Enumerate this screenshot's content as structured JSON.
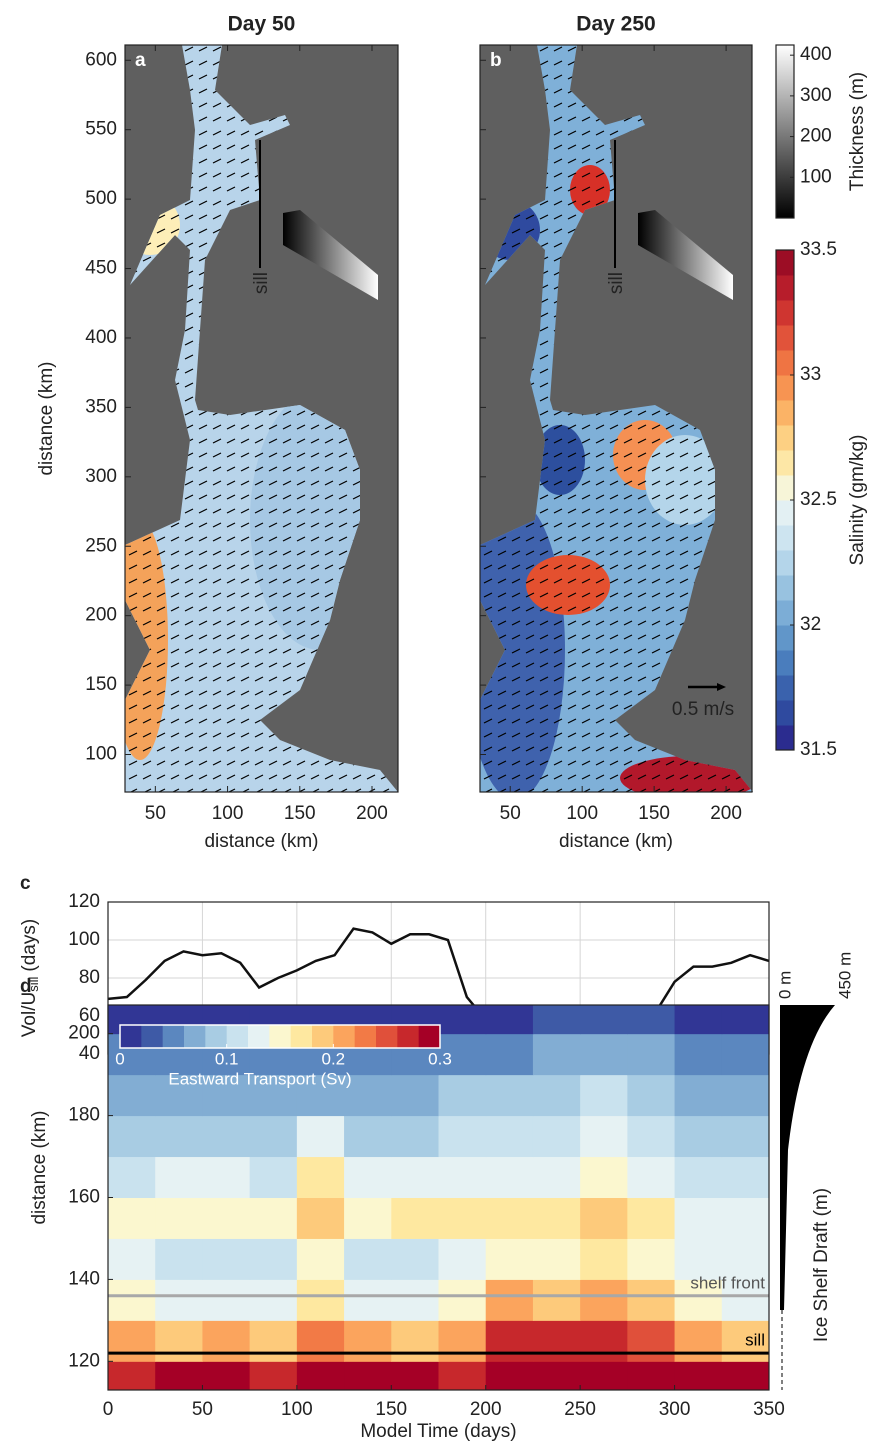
{
  "chart_data": [
    {
      "type": "map",
      "panel": "a",
      "title": "Day 50",
      "xlabel": "distance (km)",
      "ylabel": "distance (km)",
      "xlim": [
        29,
        218
      ],
      "ylim": [
        73,
        611
      ],
      "xticks": [
        50,
        100,
        150,
        200
      ],
      "yticks": [
        100,
        150,
        200,
        250,
        300,
        350,
        400,
        450,
        500,
        550,
        600
      ],
      "annotations": [
        "sill"
      ]
    },
    {
      "type": "map",
      "panel": "b",
      "title": "Day 250",
      "xlabel": "distance (km)",
      "xlim": [
        29,
        218
      ],
      "ylim": [
        73,
        611
      ],
      "xticks": [
        50,
        100,
        150,
        200
      ],
      "yticks": [
        100,
        150,
        200,
        250,
        300,
        350,
        400,
        450,
        500,
        550,
        600
      ],
      "annotations": [
        "sill",
        "0.5 m/s"
      ]
    },
    {
      "type": "colorbar",
      "label": "Thickness (m)",
      "ylim": [
        0,
        425
      ],
      "yticks": [
        100,
        200,
        300,
        400
      ],
      "colormap": [
        "#000000",
        "#ffffff"
      ]
    },
    {
      "type": "colorbar",
      "label": "Salinity (gm/kg)",
      "ylim": [
        31.5,
        33.5
      ],
      "yticks": [
        31.5,
        32,
        32.5,
        33,
        33.5
      ],
      "colormap": [
        "#2b2c8f",
        "#2f4a9f",
        "#3a62ad",
        "#4a7dbd",
        "#6196c9",
        "#7cadd6",
        "#98c2e0",
        "#b4d5ea",
        "#cde4f0",
        "#e3f0f3",
        "#f7f5d8",
        "#fde7a6",
        "#fdd083",
        "#fbb366",
        "#f79452",
        "#ef7443",
        "#e1533a",
        "#cf3530",
        "#b71d2b",
        "#9c0d25"
      ]
    },
    {
      "type": "line",
      "panel": "c",
      "ylabel": "Vol/U",
      "ylabel_sub": "sill",
      "ylabel_unit": "(days)",
      "xlim": [
        0,
        350
      ],
      "ylim": [
        40,
        120
      ],
      "xticks": [
        0,
        50,
        100,
        150,
        200,
        250,
        300,
        350
      ],
      "yticks": [
        40,
        60,
        80,
        100,
        120
      ],
      "grid": true,
      "color": "#111111",
      "x": [
        0,
        10,
        20,
        30,
        40,
        50,
        60,
        70,
        80,
        90,
        100,
        110,
        120,
        130,
        140,
        150,
        160,
        170,
        180,
        190,
        200,
        210,
        220,
        230,
        240,
        250,
        260,
        270,
        280,
        290,
        300,
        310,
        320,
        330,
        340,
        350
      ],
      "values": [
        69,
        70,
        79,
        89,
        94,
        92,
        93,
        88,
        75,
        80,
        84,
        89,
        92,
        106,
        104,
        98,
        103,
        103,
        100,
        70,
        58,
        57,
        57,
        58,
        61,
        57,
        57,
        61,
        56,
        62,
        78,
        86,
        86,
        88,
        92,
        89
      ]
    },
    {
      "type": "heatmap",
      "panel": "d",
      "xlabel": "Model Time (days)",
      "ylabel": "distance (km)",
      "xlim": [
        0,
        350
      ],
      "ylim": [
        113,
        207
      ],
      "xticks": [
        0,
        50,
        100,
        150,
        200,
        250,
        300,
        350
      ],
      "yticks": [
        120,
        140,
        160,
        180,
        200
      ],
      "xbins": [
        0,
        25,
        50,
        75,
        100,
        125,
        150,
        175,
        200,
        225,
        250,
        275,
        300,
        325,
        350
      ],
      "ybins": [
        113,
        120,
        130,
        140,
        150,
        160,
        170,
        180,
        190,
        200,
        207
      ],
      "z": [
        [
          0.27,
          0.28,
          0.28,
          0.27,
          0.29,
          0.28,
          0.28,
          0.27,
          0.3,
          0.3,
          0.3,
          0.29,
          0.28,
          0.28
        ],
        [
          0.2,
          0.19,
          0.2,
          0.19,
          0.23,
          0.2,
          0.19,
          0.2,
          0.27,
          0.26,
          0.27,
          0.25,
          0.2,
          0.19
        ],
        [
          0.14,
          0.12,
          0.13,
          0.12,
          0.17,
          0.13,
          0.12,
          0.14,
          0.2,
          0.19,
          0.21,
          0.19,
          0.14,
          0.13
        ],
        [
          0.13,
          0.11,
          0.11,
          0.11,
          0.15,
          0.11,
          0.1,
          0.13,
          0.15,
          0.14,
          0.16,
          0.15,
          0.12,
          0.12
        ],
        [
          0.15,
          0.15,
          0.14,
          0.14,
          0.18,
          0.15,
          0.16,
          0.17,
          0.17,
          0.16,
          0.18,
          0.17,
          0.13,
          0.13
        ],
        [
          0.11,
          0.12,
          0.12,
          0.11,
          0.16,
          0.12,
          0.12,
          0.13,
          0.13,
          0.13,
          0.14,
          0.13,
          0.11,
          0.11
        ],
        [
          0.08,
          0.09,
          0.09,
          0.08,
          0.12,
          0.09,
          0.09,
          0.1,
          0.1,
          0.11,
          0.12,
          0.11,
          0.09,
          0.08
        ],
        [
          0.06,
          0.07,
          0.07,
          0.06,
          0.07,
          0.07,
          0.07,
          0.08,
          0.08,
          0.09,
          0.1,
          0.09,
          0.07,
          0.06
        ],
        [
          0.04,
          0.04,
          0.05,
          0.04,
          0.05,
          0.04,
          0.05,
          0.05,
          0.05,
          0.06,
          0.07,
          0.06,
          0.05,
          0.04
        ],
        [
          0.01,
          0.01,
          0.01,
          0.01,
          0.01,
          0.01,
          0.01,
          0.01,
          0.01,
          0.02,
          0.02,
          0.02,
          0.01,
          0.01
        ]
      ],
      "colorbar": {
        "label": "Eastward Transport (Sv)",
        "lim": [
          0,
          0.3
        ],
        "ticks": [
          0,
          0.1,
          0.2,
          0.3
        ],
        "colormap": [
          "#313695",
          "#3e5aa6",
          "#5b87bf",
          "#82add3",
          "#a8cce3",
          "#c9e2ee",
          "#e6f2f3",
          "#fbf7cf",
          "#fee8a0",
          "#fdca7b",
          "#fba45d",
          "#f27a46",
          "#e0503a",
          "#c7282c",
          "#a50026"
        ]
      },
      "lines": [
        {
          "y": 136,
          "label": "shelf front",
          "color": "#a8a8a8"
        },
        {
          "y": 122,
          "label": "sill",
          "color": "#000000"
        }
      ],
      "draft": {
        "label": "Ice Shelf Draft (m)",
        "top_label": "0 m",
        "bottom_label": "450 m"
      }
    }
  ]
}
